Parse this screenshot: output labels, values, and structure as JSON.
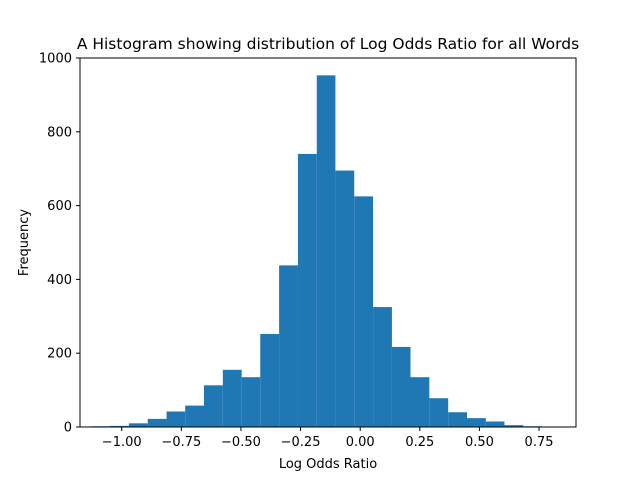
{
  "chart_data": {
    "type": "bar",
    "title": "A Histogram showing distribution of Log Odds Ratio for all Words",
    "xlabel": "Log Odds Ratio",
    "ylabel": "Frequency",
    "xlim": [
      -1.175,
      0.905
    ],
    "ylim": [
      0,
      1000
    ],
    "xticks": [
      -1.0,
      -0.75,
      -0.5,
      -0.25,
      0.0,
      0.25,
      0.5,
      0.75
    ],
    "xtick_labels": [
      "−1.00",
      "−0.75",
      "−0.50",
      "−0.25",
      "0.00",
      "0.25",
      "0.50",
      "0.75"
    ],
    "yticks": [
      0,
      200,
      400,
      600,
      800,
      1000
    ],
    "ytick_labels": [
      "0",
      "200",
      "400",
      "600",
      "800",
      "1000"
    ],
    "grid": false,
    "legend": "none",
    "color": "#1f77b4",
    "bins": [
      {
        "x0": -1.128,
        "x1": -1.049,
        "value": 2
      },
      {
        "x0": -1.049,
        "x1": -0.97,
        "value": 3
      },
      {
        "x0": -0.97,
        "x1": -0.891,
        "value": 10
      },
      {
        "x0": -0.891,
        "x1": -0.812,
        "value": 22
      },
      {
        "x0": -0.812,
        "x1": -0.734,
        "value": 42
      },
      {
        "x0": -0.734,
        "x1": -0.655,
        "value": 58
      },
      {
        "x0": -0.655,
        "x1": -0.576,
        "value": 113
      },
      {
        "x0": -0.576,
        "x1": -0.497,
        "value": 155
      },
      {
        "x0": -0.497,
        "x1": -0.419,
        "value": 135
      },
      {
        "x0": -0.419,
        "x1": -0.34,
        "value": 252
      },
      {
        "x0": -0.34,
        "x1": -0.261,
        "value": 438
      },
      {
        "x0": -0.261,
        "x1": -0.182,
        "value": 740
      },
      {
        "x0": -0.182,
        "x1": -0.104,
        "value": 953
      },
      {
        "x0": -0.104,
        "x1": -0.025,
        "value": 695
      },
      {
        "x0": -0.025,
        "x1": 0.054,
        "value": 625
      },
      {
        "x0": 0.054,
        "x1": 0.133,
        "value": 325
      },
      {
        "x0": 0.133,
        "x1": 0.211,
        "value": 217
      },
      {
        "x0": 0.211,
        "x1": 0.29,
        "value": 135
      },
      {
        "x0": 0.29,
        "x1": 0.369,
        "value": 78
      },
      {
        "x0": 0.369,
        "x1": 0.448,
        "value": 40
      },
      {
        "x0": 0.448,
        "x1": 0.527,
        "value": 24
      },
      {
        "x0": 0.527,
        "x1": 0.605,
        "value": 15
      },
      {
        "x0": 0.605,
        "x1": 0.684,
        "value": 5
      },
      {
        "x0": 0.684,
        "x1": 0.763,
        "value": 2
      },
      {
        "x0": 0.763,
        "x1": 0.857,
        "value": 1
      }
    ]
  }
}
